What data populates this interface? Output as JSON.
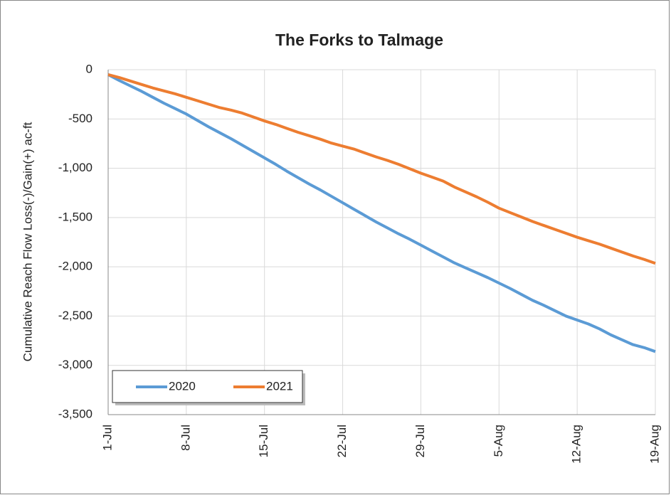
{
  "chart_data": {
    "type": "line",
    "title": "The Forks to Talmage",
    "y_label": "Cumulative Reach Flow Loss(-)/Gain(+)  ac-ft",
    "categories": [
      "1-Jul",
      null,
      null,
      null,
      null,
      null,
      null,
      "8-Jul",
      null,
      null,
      null,
      null,
      null,
      null,
      "15-Jul",
      null,
      null,
      null,
      null,
      null,
      null,
      "22-Jul",
      null,
      null,
      null,
      null,
      null,
      null,
      "29-Jul",
      null,
      null,
      null,
      null,
      null,
      null,
      "5-Aug",
      null,
      null,
      null,
      null,
      null,
      null,
      "12-Aug",
      null,
      null,
      null,
      null,
      null,
      null,
      "19-Aug"
    ],
    "series": [
      {
        "name": "2020",
        "color": "#5b9bd5",
        "values": [
          -50,
          -110,
          -165,
          -220,
          -280,
          -340,
          -395,
          -450,
          -515,
          -580,
          -640,
          -700,
          -765,
          -830,
          -895,
          -960,
          -1030,
          -1095,
          -1160,
          -1220,
          -1285,
          -1350,
          -1415,
          -1480,
          -1545,
          -1605,
          -1665,
          -1720,
          -1780,
          -1840,
          -1900,
          -1960,
          -2010,
          -2060,
          -2110,
          -2165,
          -2220,
          -2280,
          -2340,
          -2390,
          -2445,
          -2500,
          -2540,
          -2580,
          -2630,
          -2690,
          -2740,
          -2790,
          -2820,
          -2860
        ]
      },
      {
        "name": "2021",
        "color": "#ed7d31",
        "values": [
          -50,
          -80,
          -115,
          -150,
          -185,
          -215,
          -245,
          -280,
          -315,
          -350,
          -385,
          -410,
          -440,
          -480,
          -520,
          -555,
          -595,
          -635,
          -670,
          -705,
          -745,
          -775,
          -805,
          -845,
          -885,
          -920,
          -960,
          -1005,
          -1050,
          -1090,
          -1130,
          -1190,
          -1240,
          -1290,
          -1345,
          -1405,
          -1450,
          -1495,
          -1540,
          -1580,
          -1620,
          -1660,
          -1700,
          -1735,
          -1770,
          -1810,
          -1850,
          -1890,
          -1925,
          -1965
        ]
      }
    ],
    "ylim": [
      -3500,
      0
    ],
    "yticks": [
      0,
      -500,
      {
        "value": -1000,
        "label": "-1,000"
      },
      {
        "value": -1500,
        "label": "-1,500"
      },
      {
        "value": -2000,
        "label": "-2,000"
      },
      {
        "value": -2500,
        "label": "-2,500"
      },
      {
        "value": -3000,
        "label": "-3,000"
      },
      {
        "value": -3500,
        "label": "-3,500"
      }
    ],
    "grid": true,
    "legend": "lower left"
  }
}
